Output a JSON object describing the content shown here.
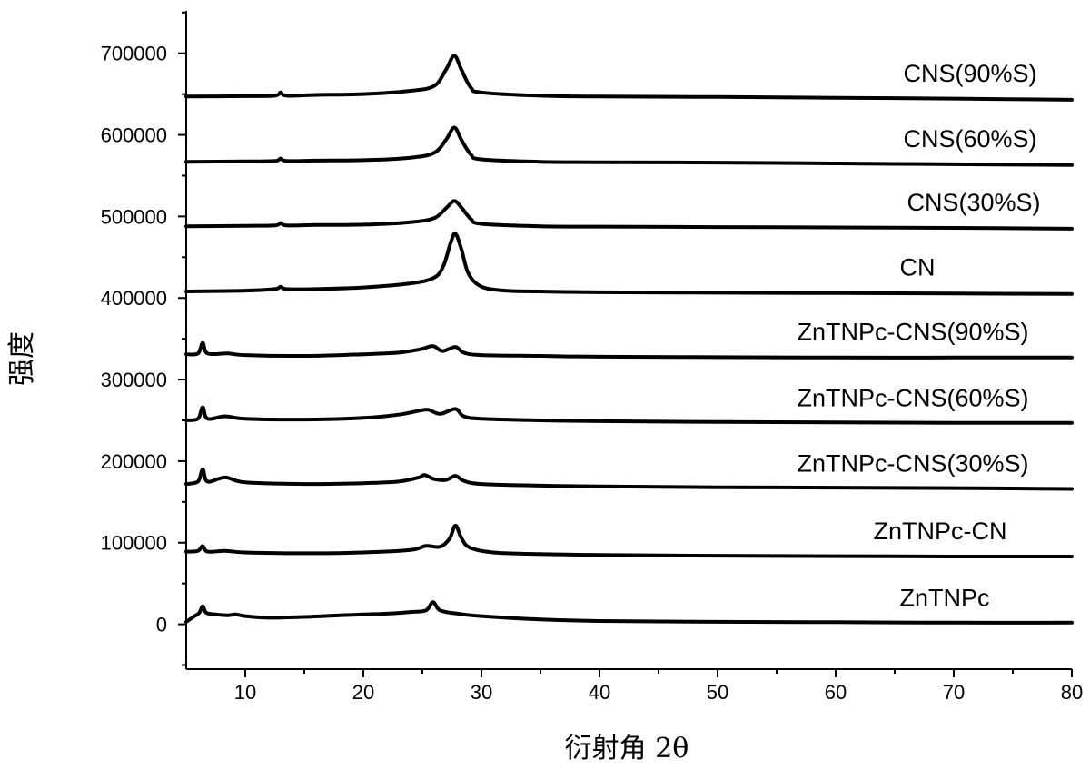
{
  "chart_data": {
    "type": "line",
    "xlabel": "衍射角 2θ",
    "ylabel": "强度",
    "xlim": [
      5,
      80
    ],
    "ylim": [
      -55000,
      752000
    ],
    "xticks": [
      10,
      20,
      30,
      40,
      50,
      60,
      70,
      80
    ],
    "yticks": [
      0,
      100000,
      200000,
      300000,
      400000,
      500000,
      600000,
      700000
    ],
    "grid": false,
    "legend": "inline labels right of each trace",
    "series": [
      {
        "name": "ZnTNPc",
        "baseline": 0,
        "points": [
          [
            5,
            3000
          ],
          [
            5.6,
            9000
          ],
          [
            6.1,
            14000
          ],
          [
            6.4,
            22000
          ],
          [
            6.7,
            14000
          ],
          [
            7.5,
            12000
          ],
          [
            8.5,
            11000
          ],
          [
            9.2,
            12000
          ],
          [
            10,
            10000
          ],
          [
            12,
            8000
          ],
          [
            15,
            9000
          ],
          [
            18,
            11000
          ],
          [
            20,
            12000
          ],
          [
            22,
            13000
          ],
          [
            24,
            15000
          ],
          [
            25.3,
            17000
          ],
          [
            25.9,
            27000
          ],
          [
            26.5,
            17000
          ],
          [
            28,
            13000
          ],
          [
            30,
            10000
          ],
          [
            35,
            6000
          ],
          [
            40,
            4000
          ],
          [
            50,
            3000
          ],
          [
            60,
            2500
          ],
          [
            70,
            2000
          ],
          [
            80,
            2000
          ]
        ]
      },
      {
        "name": "ZnTNPc-CN",
        "baseline": 82000,
        "points": [
          [
            5,
            89000
          ],
          [
            6,
            90000
          ],
          [
            6.4,
            96000
          ],
          [
            6.8,
            89000
          ],
          [
            8.3,
            90000
          ],
          [
            10,
            88000
          ],
          [
            15,
            87000
          ],
          [
            20,
            88000
          ],
          [
            24,
            91000
          ],
          [
            25.3,
            96000
          ],
          [
            26.5,
            95000
          ],
          [
            27.3,
            105000
          ],
          [
            27.8,
            121000
          ],
          [
            28.3,
            106000
          ],
          [
            29,
            94000
          ],
          [
            31,
            88000
          ],
          [
            35,
            86000
          ],
          [
            40,
            85000
          ],
          [
            50,
            84000
          ],
          [
            60,
            83500
          ],
          [
            70,
            83000
          ],
          [
            80,
            83000
          ]
        ]
      },
      {
        "name": "ZnTNPc-CNS(30%S)",
        "baseline": 165000,
        "points": [
          [
            5,
            172000
          ],
          [
            6,
            175000
          ],
          [
            6.4,
            190000
          ],
          [
            6.8,
            175000
          ],
          [
            8.3,
            180000
          ],
          [
            10,
            174000
          ],
          [
            15,
            172000
          ],
          [
            20,
            173000
          ],
          [
            23,
            175000
          ],
          [
            24.7,
            180000
          ],
          [
            25.2,
            183000
          ],
          [
            26,
            178000
          ],
          [
            27,
            177000
          ],
          [
            27.8,
            182000
          ],
          [
            28.5,
            176000
          ],
          [
            30,
            172000
          ],
          [
            35,
            170000
          ],
          [
            40,
            169000
          ],
          [
            50,
            168000
          ],
          [
            60,
            167500
          ],
          [
            70,
            167000
          ],
          [
            80,
            166000
          ]
        ]
      },
      {
        "name": "ZnTNPc-CNS(60%S)",
        "baseline": 245000,
        "points": [
          [
            5,
            250000
          ],
          [
            6,
            252000
          ],
          [
            6.4,
            266000
          ],
          [
            6.8,
            252000
          ],
          [
            8.3,
            255000
          ],
          [
            10,
            252000
          ],
          [
            15,
            251000
          ],
          [
            20,
            253000
          ],
          [
            23,
            257000
          ],
          [
            24.8,
            262000
          ],
          [
            25.5,
            263000
          ],
          [
            26.5,
            258000
          ],
          [
            27.8,
            264000
          ],
          [
            28.5,
            255000
          ],
          [
            30,
            252000
          ],
          [
            35,
            250000
          ],
          [
            40,
            249000
          ],
          [
            50,
            248000
          ],
          [
            60,
            247500
          ],
          [
            70,
            247000
          ],
          [
            80,
            247000
          ]
        ]
      },
      {
        "name": "ZnTNPc-CNS(90%S)",
        "baseline": 326000,
        "points": [
          [
            5,
            331000
          ],
          [
            6,
            332000
          ],
          [
            6.4,
            345000
          ],
          [
            6.8,
            332000
          ],
          [
            8.5,
            332000
          ],
          [
            10,
            330000
          ],
          [
            15,
            329000
          ],
          [
            20,
            331000
          ],
          [
            23,
            333000
          ],
          [
            24.8,
            337000
          ],
          [
            25.9,
            341000
          ],
          [
            26.7,
            335000
          ],
          [
            27.8,
            340000
          ],
          [
            28.5,
            333000
          ],
          [
            30,
            330000
          ],
          [
            35,
            329000
          ],
          [
            40,
            328000
          ],
          [
            50,
            327500
          ],
          [
            60,
            327000
          ],
          [
            70,
            327000
          ],
          [
            80,
            327000
          ]
        ]
      },
      {
        "name": "CN",
        "baseline": 405000,
        "points": [
          [
            5,
            408000
          ],
          [
            10,
            409000
          ],
          [
            12.5,
            411000
          ],
          [
            13,
            414000
          ],
          [
            13.5,
            411000
          ],
          [
            16,
            411000
          ],
          [
            20,
            413000
          ],
          [
            24,
            418000
          ],
          [
            26,
            425000
          ],
          [
            26.8,
            440000
          ],
          [
            27.4,
            468000
          ],
          [
            27.8,
            479000
          ],
          [
            28.3,
            460000
          ],
          [
            28.9,
            430000
          ],
          [
            30,
            414000
          ],
          [
            32,
            409000
          ],
          [
            35,
            408000
          ],
          [
            40,
            407000
          ],
          [
            50,
            406500
          ],
          [
            60,
            406000
          ],
          [
            70,
            405500
          ],
          [
            80,
            405000
          ]
        ]
      },
      {
        "name": "CNS(30%S)",
        "baseline": 485000,
        "points": [
          [
            5,
            488000
          ],
          [
            10,
            488500
          ],
          [
            12.5,
            489000
          ],
          [
            13,
            492000
          ],
          [
            13.5,
            489000
          ],
          [
            16,
            489500
          ],
          [
            20,
            490000
          ],
          [
            24,
            493000
          ],
          [
            26,
            498000
          ],
          [
            27,
            510000
          ],
          [
            27.7,
            519000
          ],
          [
            28.3,
            511000
          ],
          [
            29.1,
            497000
          ],
          [
            30,
            491000
          ],
          [
            35,
            488000
          ],
          [
            40,
            487500
          ],
          [
            50,
            487000
          ],
          [
            60,
            486500
          ],
          [
            70,
            486000
          ],
          [
            80,
            485000
          ]
        ]
      },
      {
        "name": "CNS(60%S)",
        "baseline": 563000,
        "points": [
          [
            5,
            567000
          ],
          [
            10,
            567500
          ],
          [
            12.5,
            568000
          ],
          [
            13,
            571000
          ],
          [
            13.5,
            568000
          ],
          [
            16,
            568500
          ],
          [
            20,
            569000
          ],
          [
            24,
            572000
          ],
          [
            26,
            578000
          ],
          [
            27,
            594000
          ],
          [
            27.7,
            609000
          ],
          [
            28.3,
            594000
          ],
          [
            29.1,
            576000
          ],
          [
            30,
            570000
          ],
          [
            35,
            567000
          ],
          [
            40,
            566500
          ],
          [
            50,
            566000
          ],
          [
            60,
            565000
          ],
          [
            70,
            564000
          ],
          [
            80,
            563000
          ]
        ]
      },
      {
        "name": "CNS(90%S)",
        "baseline": 643000,
        "points": [
          [
            5,
            647000
          ],
          [
            10,
            647500
          ],
          [
            12.5,
            648000
          ],
          [
            13,
            652000
          ],
          [
            13.5,
            648000
          ],
          [
            16,
            649000
          ],
          [
            20,
            650000
          ],
          [
            24,
            654000
          ],
          [
            26,
            660000
          ],
          [
            27,
            680000
          ],
          [
            27.7,
            697000
          ],
          [
            28.3,
            680000
          ],
          [
            29.1,
            658000
          ],
          [
            30,
            652000
          ],
          [
            35,
            648000
          ],
          [
            40,
            647000
          ],
          [
            50,
            646500
          ],
          [
            60,
            645500
          ],
          [
            70,
            644500
          ],
          [
            80,
            643000
          ]
        ]
      }
    ]
  }
}
